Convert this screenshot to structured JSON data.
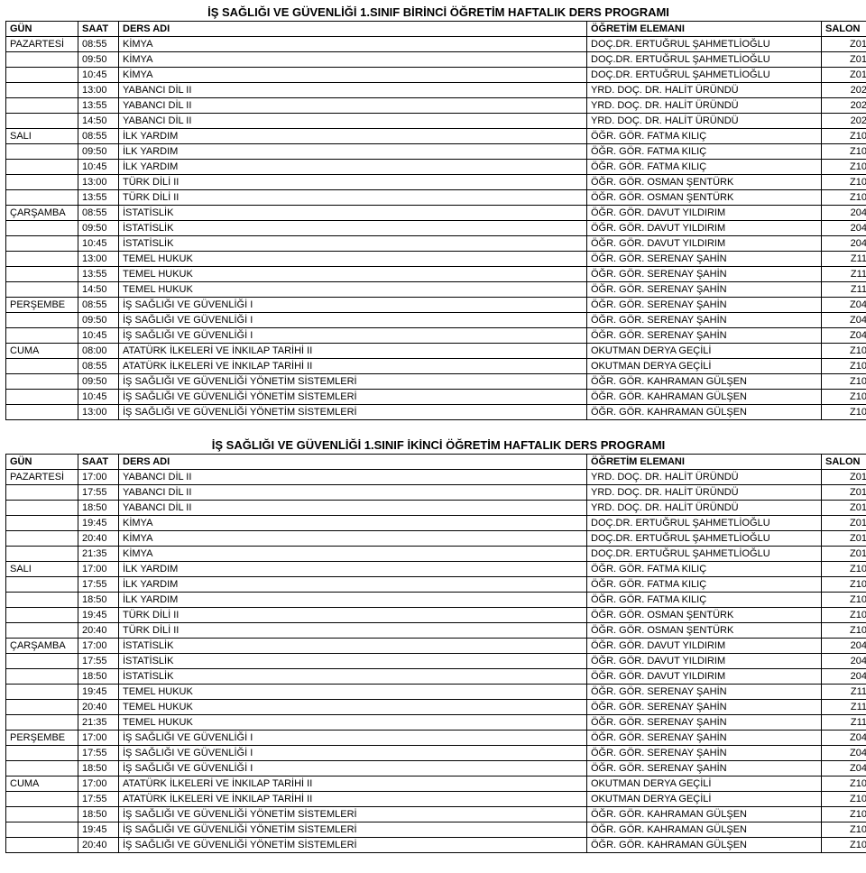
{
  "tables": [
    {
      "title": "İŞ SAĞLIĞI VE GÜVENLİĞİ 1.SINIF BİRİNCİ ÖĞRETİM HAFTALIK DERS PROGRAMI",
      "header": {
        "gun": "GÜN",
        "saat": "SAAT",
        "ders": "DERS ADI",
        "elem": "ÖĞRETİM ELEMANI",
        "salon": "SALON"
      },
      "rows": [
        {
          "gun": "PAZARTESİ",
          "saat": "08:55",
          "ders": "KİMYA",
          "elem": "DOÇ.DR. ERTUĞRUL ŞAHMETLİOĞLU",
          "salon": "Z01"
        },
        {
          "gun": "",
          "saat": "09:50",
          "ders": "KİMYA",
          "elem": "DOÇ.DR. ERTUĞRUL ŞAHMETLİOĞLU",
          "salon": "Z01"
        },
        {
          "gun": "",
          "saat": "10:45",
          "ders": "KİMYA",
          "elem": "DOÇ.DR. ERTUĞRUL ŞAHMETLİOĞLU",
          "salon": "Z01"
        },
        {
          "gun": "",
          "saat": "13:00",
          "ders": "YABANCI DİL II",
          "elem": "YRD. DOÇ. DR. HALİT ÜRÜNDÜ",
          "salon": "202"
        },
        {
          "gun": "",
          "saat": "13:55",
          "ders": "YABANCI DİL II",
          "elem": "YRD. DOÇ. DR. HALİT ÜRÜNDÜ",
          "salon": "202"
        },
        {
          "gun": "",
          "saat": "14:50",
          "ders": "YABANCI DİL II",
          "elem": "YRD. DOÇ. DR. HALİT ÜRÜNDÜ",
          "salon": "202"
        },
        {
          "gun": "SALI",
          "saat": "08:55",
          "ders": "İLK YARDIM",
          "elem": "ÖĞR. GÖR. FATMA KILIÇ",
          "salon": "Z10"
        },
        {
          "gun": "",
          "saat": "09:50",
          "ders": "İLK YARDIM",
          "elem": "ÖĞR. GÖR. FATMA KILIÇ",
          "salon": "Z10"
        },
        {
          "gun": "",
          "saat": "10:45",
          "ders": "İLK YARDIM",
          "elem": "ÖĞR. GÖR. FATMA KILIÇ",
          "salon": "Z10"
        },
        {
          "gun": "",
          "saat": "13:00",
          "ders": "TÜRK DİLİ II",
          "elem": "ÖĞR. GÖR. OSMAN ŞENTÜRK",
          "salon": "Z10"
        },
        {
          "gun": "",
          "saat": "13:55",
          "ders": "TÜRK DİLİ II",
          "elem": "ÖĞR. GÖR. OSMAN ŞENTÜRK",
          "salon": "Z10"
        },
        {
          "gun": "ÇARŞAMBA",
          "saat": "08:55",
          "ders": "İSTATİSLİK",
          "elem": "ÖĞR. GÖR. DAVUT YILDIRIM",
          "salon": "204"
        },
        {
          "gun": "",
          "saat": "09:50",
          "ders": "İSTATİSLİK",
          "elem": "ÖĞR. GÖR. DAVUT YILDIRIM",
          "salon": "204"
        },
        {
          "gun": "",
          "saat": "10:45",
          "ders": "İSTATİSLİK",
          "elem": "ÖĞR. GÖR. DAVUT YILDIRIM",
          "salon": "204"
        },
        {
          "gun": "",
          "saat": "13:00",
          "ders": "TEMEL HUKUK",
          "elem": "ÖĞR. GÖR. SERENAY ŞAHİN",
          "salon": "Z11"
        },
        {
          "gun": "",
          "saat": "13:55",
          "ders": "TEMEL HUKUK",
          "elem": "ÖĞR. GÖR. SERENAY ŞAHİN",
          "salon": "Z11"
        },
        {
          "gun": "",
          "saat": "14:50",
          "ders": "TEMEL HUKUK",
          "elem": "ÖĞR. GÖR. SERENAY ŞAHİN",
          "salon": "Z11"
        },
        {
          "gun": "PERŞEMBE",
          "saat": "08:55",
          "ders": "İŞ SAĞLIĞI VE GÜVENLİĞİ I",
          "elem": "ÖĞR. GÖR. SERENAY ŞAHİN",
          "salon": "Z04"
        },
        {
          "gun": "",
          "saat": "09:50",
          "ders": "İŞ SAĞLIĞI VE GÜVENLİĞİ I",
          "elem": "ÖĞR. GÖR. SERENAY ŞAHİN",
          "salon": "Z04"
        },
        {
          "gun": "",
          "saat": "10:45",
          "ders": "İŞ SAĞLIĞI VE GÜVENLİĞİ I",
          "elem": "ÖĞR. GÖR. SERENAY ŞAHİN",
          "salon": "Z04"
        },
        {
          "gun": "CUMA",
          "saat": "08:00",
          "ders": "ATATÜRK İLKELERİ VE İNKILAP TARİHİ II",
          "elem": "OKUTMAN DERYA GEÇİLİ",
          "salon": "Z10"
        },
        {
          "gun": "",
          "saat": "08:55",
          "ders": "ATATÜRK İLKELERİ VE İNKILAP TARİHİ II",
          "elem": "OKUTMAN DERYA GEÇİLİ",
          "salon": "Z10"
        },
        {
          "gun": "",
          "saat": "09:50",
          "ders": "İŞ SAĞLIĞI VE GÜVENLİĞİ YÖNETİM SİSTEMLERİ",
          "elem": "ÖĞR. GÖR. KAHRAMAN GÜLŞEN",
          "salon": "Z10"
        },
        {
          "gun": "",
          "saat": "10:45",
          "ders": "İŞ SAĞLIĞI VE GÜVENLİĞİ YÖNETİM SİSTEMLERİ",
          "elem": "ÖĞR. GÖR. KAHRAMAN GÜLŞEN",
          "salon": "Z10"
        },
        {
          "gun": "",
          "saat": "13:00",
          "ders": "İŞ SAĞLIĞI VE GÜVENLİĞİ YÖNETİM SİSTEMLERİ",
          "elem": "ÖĞR. GÖR. KAHRAMAN GÜLŞEN",
          "salon": "Z10"
        }
      ]
    },
    {
      "title": "İŞ SAĞLIĞI VE GÜVENLİĞİ 1.SINIF İKİNCİ ÖĞRETİM HAFTALIK DERS PROGRAMI",
      "header": {
        "gun": "GÜN",
        "saat": "SAAT",
        "ders": "DERS ADI",
        "elem": "ÖĞRETİM ELEMANI",
        "salon": "SALON"
      },
      "rows": [
        {
          "gun": "PAZARTESİ",
          "saat": "17:00",
          "ders": "YABANCI DİL II",
          "elem": "YRD. DOÇ. DR. HALİT ÜRÜNDÜ",
          "salon": "Z01"
        },
        {
          "gun": "",
          "saat": "17:55",
          "ders": "YABANCI DİL II",
          "elem": "YRD. DOÇ. DR. HALİT ÜRÜNDÜ",
          "salon": "Z01"
        },
        {
          "gun": "",
          "saat": "18:50",
          "ders": "YABANCI DİL II",
          "elem": "YRD. DOÇ. DR. HALİT ÜRÜNDÜ",
          "salon": "Z01"
        },
        {
          "gun": "",
          "saat": "19:45",
          "ders": "KİMYA",
          "elem": "DOÇ.DR. ERTUĞRUL ŞAHMETLİOĞLU",
          "salon": "Z01"
        },
        {
          "gun": "",
          "saat": "20:40",
          "ders": "KİMYA",
          "elem": "DOÇ.DR. ERTUĞRUL ŞAHMETLİOĞLU",
          "salon": "Z01"
        },
        {
          "gun": "",
          "saat": "21:35",
          "ders": "KİMYA",
          "elem": "DOÇ.DR. ERTUĞRUL ŞAHMETLİOĞLU",
          "salon": "Z01"
        },
        {
          "gun": "SALI",
          "saat": "17:00",
          "ders": "İLK YARDIM",
          "elem": "ÖĞR. GÖR. FATMA KILIÇ",
          "salon": "Z10"
        },
        {
          "gun": "",
          "saat": "17:55",
          "ders": "İLK YARDIM",
          "elem": "ÖĞR. GÖR. FATMA KILIÇ",
          "salon": "Z10"
        },
        {
          "gun": "",
          "saat": "18:50",
          "ders": "İLK YARDIM",
          "elem": "ÖĞR. GÖR. FATMA KILIÇ",
          "salon": "Z10"
        },
        {
          "gun": "",
          "saat": "19:45",
          "ders": "TÜRK DİLİ II",
          "elem": "ÖĞR. GÖR. OSMAN ŞENTÜRK",
          "salon": "Z10"
        },
        {
          "gun": "",
          "saat": "20:40",
          "ders": "TÜRK DİLİ II",
          "elem": "ÖĞR. GÖR. OSMAN ŞENTÜRK",
          "salon": "Z10"
        },
        {
          "gun": "ÇARŞAMBA",
          "saat": "17:00",
          "ders": "İSTATİSLİK",
          "elem": "ÖĞR. GÖR. DAVUT YILDIRIM",
          "salon": "204"
        },
        {
          "gun": "",
          "saat": "17:55",
          "ders": "İSTATİSLİK",
          "elem": "ÖĞR. GÖR. DAVUT YILDIRIM",
          "salon": "204"
        },
        {
          "gun": "",
          "saat": "18:50",
          "ders": "İSTATİSLİK",
          "elem": "ÖĞR. GÖR. DAVUT YILDIRIM",
          "salon": "204"
        },
        {
          "gun": "",
          "saat": "19:45",
          "ders": "TEMEL HUKUK",
          "elem": "ÖĞR. GÖR. SERENAY ŞAHİN",
          "salon": "Z11"
        },
        {
          "gun": "",
          "saat": "20:40",
          "ders": "TEMEL HUKUK",
          "elem": "ÖĞR. GÖR. SERENAY ŞAHİN",
          "salon": "Z11"
        },
        {
          "gun": "",
          "saat": "21:35",
          "ders": "TEMEL HUKUK",
          "elem": "ÖĞR. GÖR. SERENAY ŞAHİN",
          "salon": "Z11"
        },
        {
          "gun": "PERŞEMBE",
          "saat": "17:00",
          "ders": "İŞ SAĞLIĞI VE GÜVENLİĞİ I",
          "elem": "ÖĞR. GÖR. SERENAY ŞAHİN",
          "salon": "Z04"
        },
        {
          "gun": "",
          "saat": "17:55",
          "ders": "İŞ SAĞLIĞI VE GÜVENLİĞİ I",
          "elem": "ÖĞR. GÖR. SERENAY ŞAHİN",
          "salon": "Z04"
        },
        {
          "gun": "",
          "saat": "18:50",
          "ders": "İŞ SAĞLIĞI VE GÜVENLİĞİ I",
          "elem": "ÖĞR. GÖR. SERENAY ŞAHİN",
          "salon": "Z04"
        },
        {
          "gun": "CUMA",
          "saat": "17:00",
          "ders": "ATATÜRK İLKELERİ VE İNKILAP TARİHİ II",
          "elem": "OKUTMAN DERYA GEÇİLİ",
          "salon": "Z10"
        },
        {
          "gun": "",
          "saat": "17:55",
          "ders": "ATATÜRK İLKELERİ VE İNKILAP TARİHİ II",
          "elem": "OKUTMAN DERYA GEÇİLİ",
          "salon": "Z10"
        },
        {
          "gun": "",
          "saat": "18:50",
          "ders": "İŞ SAĞLIĞI VE GÜVENLİĞİ YÖNETİM SİSTEMLERİ",
          "elem": "ÖĞR. GÖR. KAHRAMAN GÜLŞEN",
          "salon": "Z10"
        },
        {
          "gun": "",
          "saat": "19:45",
          "ders": "İŞ SAĞLIĞI VE GÜVENLİĞİ YÖNETİM SİSTEMLERİ",
          "elem": "ÖĞR. GÖR. KAHRAMAN GÜLŞEN",
          "salon": "Z10"
        },
        {
          "gun": "",
          "saat": "20:40",
          "ders": "İŞ SAĞLIĞI VE GÜVENLİĞİ YÖNETİM SİSTEMLERİ",
          "elem": "ÖĞR. GÖR. KAHRAMAN GÜLŞEN",
          "salon": "Z10"
        }
      ]
    }
  ]
}
